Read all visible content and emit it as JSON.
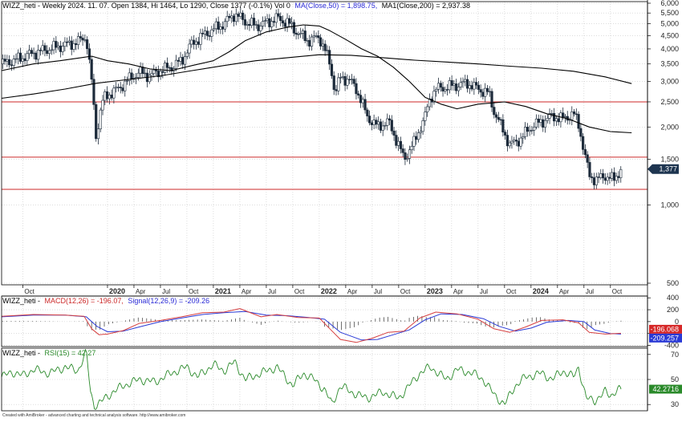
{
  "chart_data": [
    {
      "type": "candlestick",
      "title": "WIZZ_heti - Weekly 2024. 11. 07. Open 1384, Hi 1464, Lo 1290, Close 1377 (-0.1%) Vol 0",
      "ma50_label": "MA(Close,50) = 1,898.75,",
      "ma200_label": "MA1(Close,200) = 2,937.38",
      "price_axis": {
        "ylim": [
          500,
          6000
        ],
        "ticks": [
          {
            "value": 6000,
            "label": "6,000"
          },
          {
            "value": 5500,
            "label": "5,500"
          },
          {
            "value": 5000,
            "label": "5,000"
          },
          {
            "value": 4500,
            "label": "4,500"
          },
          {
            "value": 4000,
            "label": "4,000"
          },
          {
            "value": 3500,
            "label": "3,500"
          },
          {
            "value": 3000,
            "label": "3,000"
          },
          {
            "value": 2500,
            "label": "2,500"
          },
          {
            "value": 2000,
            "label": "2,000"
          },
          {
            "value": 1500,
            "label": "1,500"
          },
          {
            "value": 1000,
            "label": "1,000"
          },
          {
            "value": 500,
            "label": "500"
          }
        ],
        "last_price": 1377,
        "last_label": "1,377"
      },
      "horizontal_lines": [
        2500,
        1530,
        1150
      ],
      "x_axis": [
        {
          "t": 0.2,
          "label": "Oct",
          "year": false
        },
        {
          "t": 1.0,
          "label": "2020",
          "year": true
        },
        {
          "t": 1.25,
          "label": "Apr",
          "year": false
        },
        {
          "t": 1.5,
          "label": "Jul",
          "year": false
        },
        {
          "t": 1.75,
          "label": "Oct",
          "year": false
        },
        {
          "t": 2.0,
          "label": "2021",
          "year": true
        },
        {
          "t": 2.25,
          "label": "Apr",
          "year": false
        },
        {
          "t": 2.5,
          "label": "Jul",
          "year": false
        },
        {
          "t": 2.75,
          "label": "Oct",
          "year": false
        },
        {
          "t": 3.0,
          "label": "2022",
          "year": true
        },
        {
          "t": 3.25,
          "label": "Apr",
          "year": false
        },
        {
          "t": 3.5,
          "label": "Jul",
          "year": false
        },
        {
          "t": 3.75,
          "label": "Oct",
          "year": false
        },
        {
          "t": 4.0,
          "label": "2023",
          "year": true
        },
        {
          "t": 4.25,
          "label": "Apr",
          "year": false
        },
        {
          "t": 4.5,
          "label": "Jul",
          "year": false
        },
        {
          "t": 4.75,
          "label": "Oct",
          "year": false
        },
        {
          "t": 5.0,
          "label": "2024",
          "year": true
        },
        {
          "t": 5.25,
          "label": "Apr",
          "year": false
        },
        {
          "t": 5.5,
          "label": "Jul",
          "year": false
        },
        {
          "t": 5.75,
          "label": "Oct",
          "year": false
        }
      ],
      "price_path": [
        [
          0.0,
          3500
        ],
        [
          0.15,
          3650
        ],
        [
          0.3,
          3850
        ],
        [
          0.45,
          4000
        ],
        [
          0.6,
          4150
        ],
        [
          0.72,
          4250
        ],
        [
          0.8,
          4480
        ],
        [
          0.82,
          3700
        ],
        [
          0.86,
          2800
        ],
        [
          0.88,
          2000
        ],
        [
          0.9,
          1800
        ],
        [
          0.93,
          2300
        ],
        [
          0.97,
          2600
        ],
        [
          1.03,
          2700
        ],
        [
          1.1,
          2800
        ],
        [
          1.2,
          3050
        ],
        [
          1.3,
          3250
        ],
        [
          1.4,
          3150
        ],
        [
          1.5,
          3300
        ],
        [
          1.6,
          3400
        ],
        [
          1.7,
          3600
        ],
        [
          1.8,
          4200
        ],
        [
          1.9,
          4500
        ],
        [
          2.0,
          4750
        ],
        [
          2.1,
          5000
        ],
        [
          2.2,
          5450
        ],
        [
          2.3,
          5100
        ],
        [
          2.4,
          4900
        ],
        [
          2.5,
          5050
        ],
        [
          2.6,
          5250
        ],
        [
          2.7,
          5050
        ],
        [
          2.8,
          4600
        ],
        [
          2.9,
          4300
        ],
        [
          3.0,
          4450
        ],
        [
          3.06,
          3900
        ],
        [
          3.1,
          3500
        ],
        [
          3.15,
          2700
        ],
        [
          3.2,
          3100
        ],
        [
          3.28,
          3050
        ],
        [
          3.35,
          2800
        ],
        [
          3.45,
          2200
        ],
        [
          3.55,
          2000
        ],
        [
          3.65,
          2100
        ],
        [
          3.75,
          1700
        ],
        [
          3.8,
          1500
        ],
        [
          3.9,
          1750
        ],
        [
          4.0,
          2200
        ],
        [
          4.05,
          2600
        ],
        [
          4.1,
          2800
        ],
        [
          4.2,
          2850
        ],
        [
          4.3,
          2900
        ],
        [
          4.4,
          2950
        ],
        [
          4.5,
          2800
        ],
        [
          4.6,
          2700
        ],
        [
          4.65,
          2300
        ],
        [
          4.72,
          2000
        ],
        [
          4.8,
          1700
        ],
        [
          4.9,
          1800
        ],
        [
          5.0,
          2000
        ],
        [
          5.1,
          2100
        ],
        [
          5.2,
          2200
        ],
        [
          5.3,
          2150
        ],
        [
          5.4,
          2250
        ],
        [
          5.45,
          2050
        ],
        [
          5.5,
          1600
        ],
        [
          5.55,
          1300
        ],
        [
          5.62,
          1250
        ],
        [
          5.7,
          1300
        ],
        [
          5.78,
          1250
        ],
        [
          5.85,
          1377
        ]
      ],
      "ma50_path": [
        [
          0.0,
          3300
        ],
        [
          0.3,
          3500
        ],
        [
          0.55,
          3600
        ],
        [
          0.75,
          3700
        ],
        [
          0.85,
          3750
        ],
        [
          1.0,
          3600
        ],
        [
          1.2,
          3500
        ],
        [
          1.4,
          3350
        ],
        [
          1.6,
          3300
        ],
        [
          1.8,
          3450
        ],
        [
          2.0,
          3600
        ],
        [
          2.15,
          3900
        ],
        [
          2.3,
          4300
        ],
        [
          2.5,
          4650
        ],
        [
          2.7,
          4850
        ],
        [
          2.85,
          4950
        ],
        [
          3.0,
          4900
        ],
        [
          3.1,
          4700
        ],
        [
          3.25,
          4350
        ],
        [
          3.4,
          4000
        ],
        [
          3.55,
          3750
        ],
        [
          3.7,
          3400
        ],
        [
          3.85,
          3000
        ],
        [
          4.0,
          2600
        ],
        [
          4.15,
          2450
        ],
        [
          4.3,
          2350
        ],
        [
          4.5,
          2450
        ],
        [
          4.75,
          2500
        ],
        [
          4.95,
          2400
        ],
        [
          5.15,
          2250
        ],
        [
          5.35,
          2150
        ],
        [
          5.55,
          2000
        ],
        [
          5.75,
          1920
        ],
        [
          5.95,
          1900
        ]
      ],
      "ma200_path": [
        [
          0.0,
          2580
        ],
        [
          0.3,
          2680
        ],
        [
          0.6,
          2800
        ],
        [
          0.9,
          2950
        ],
        [
          1.2,
          3050
        ],
        [
          1.5,
          3150
        ],
        [
          1.8,
          3300
        ],
        [
          2.1,
          3450
        ],
        [
          2.4,
          3600
        ],
        [
          2.7,
          3700
        ],
        [
          3.0,
          3800
        ],
        [
          3.3,
          3780
        ],
        [
          3.6,
          3700
        ],
        [
          3.9,
          3620
        ],
        [
          4.2,
          3560
        ],
        [
          4.5,
          3500
        ],
        [
          4.8,
          3430
        ],
        [
          5.1,
          3370
        ],
        [
          5.4,
          3280
        ],
        [
          5.7,
          3120
        ],
        [
          5.95,
          2940
        ]
      ]
    },
    {
      "type": "line",
      "title": "WIZZ_heti -",
      "macd_label": "MACD(12,26) = -196.07,",
      "signal_label": "Signal(12,26,9) = -209.26",
      "ylim": [
        -420,
        430
      ],
      "ticks": [
        {
          "value": 400,
          "label": "400"
        },
        {
          "value": 200,
          "label": "200"
        },
        {
          "value": 0,
          "label": "0"
        },
        {
          "value": -200,
          "label": "-200"
        },
        {
          "value": -400,
          "label": "-400"
        }
      ],
      "macd_last_label": "-196.068",
      "signal_last_label": "-209.257",
      "macd_path": [
        [
          0.0,
          90
        ],
        [
          0.3,
          120
        ],
        [
          0.6,
          110
        ],
        [
          0.78,
          90
        ],
        [
          0.85,
          -120
        ],
        [
          0.92,
          -220
        ],
        [
          1.0,
          -210
        ],
        [
          1.15,
          -150
        ],
        [
          1.3,
          -30
        ],
        [
          1.5,
          20
        ],
        [
          1.7,
          80
        ],
        [
          1.9,
          150
        ],
        [
          2.1,
          160
        ],
        [
          2.25,
          220
        ],
        [
          2.45,
          80
        ],
        [
          2.6,
          120
        ],
        [
          2.8,
          70
        ],
        [
          3.0,
          60
        ],
        [
          3.1,
          -120
        ],
        [
          3.2,
          -300
        ],
        [
          3.35,
          -350
        ],
        [
          3.5,
          -280
        ],
        [
          3.65,
          -180
        ],
        [
          3.8,
          -160
        ],
        [
          3.95,
          60
        ],
        [
          4.1,
          160
        ],
        [
          4.3,
          130
        ],
        [
          4.5,
          40
        ],
        [
          4.65,
          -120
        ],
        [
          4.8,
          -180
        ],
        [
          4.95,
          -90
        ],
        [
          5.1,
          20
        ],
        [
          5.3,
          30
        ],
        [
          5.45,
          -20
        ],
        [
          5.55,
          -180
        ],
        [
          5.7,
          -210
        ],
        [
          5.85,
          -196
        ]
      ],
      "signal_path": [
        [
          0.0,
          80
        ],
        [
          0.3,
          110
        ],
        [
          0.6,
          110
        ],
        [
          0.8,
          80
        ],
        [
          0.9,
          -80
        ],
        [
          1.0,
          -170
        ],
        [
          1.15,
          -160
        ],
        [
          1.3,
          -90
        ],
        [
          1.5,
          0
        ],
        [
          1.7,
          60
        ],
        [
          1.9,
          120
        ],
        [
          2.1,
          150
        ],
        [
          2.3,
          170
        ],
        [
          2.5,
          110
        ],
        [
          2.7,
          100
        ],
        [
          2.9,
          70
        ],
        [
          3.05,
          40
        ],
        [
          3.2,
          -180
        ],
        [
          3.4,
          -310
        ],
        [
          3.55,
          -300
        ],
        [
          3.7,
          -220
        ],
        [
          3.85,
          -140
        ],
        [
          4.0,
          30
        ],
        [
          4.15,
          130
        ],
        [
          4.35,
          120
        ],
        [
          4.55,
          50
        ],
        [
          4.7,
          -80
        ],
        [
          4.85,
          -160
        ],
        [
          5.0,
          -110
        ],
        [
          5.15,
          -10
        ],
        [
          5.35,
          20
        ],
        [
          5.5,
          0
        ],
        [
          5.6,
          -140
        ],
        [
          5.75,
          -200
        ],
        [
          5.85,
          -209
        ]
      ],
      "histogram_step": 0.04
    },
    {
      "type": "line",
      "title": "WIZZ_heti -",
      "rsi_label": "RSI(15) = 42.27",
      "ylim": [
        25,
        75
      ],
      "ticks": [
        {
          "value": 70,
          "label": "70"
        },
        {
          "value": 50,
          "label": "50"
        },
        {
          "value": 30,
          "label": "30"
        }
      ],
      "rsi_last_label": "42.2716",
      "rsi_path": [
        [
          0.0,
          52
        ],
        [
          0.1,
          56
        ],
        [
          0.2,
          53
        ],
        [
          0.3,
          58
        ],
        [
          0.45,
          55
        ],
        [
          0.6,
          60
        ],
        [
          0.72,
          57
        ],
        [
          0.8,
          72
        ],
        [
          0.84,
          40
        ],
        [
          0.88,
          28
        ],
        [
          0.95,
          33
        ],
        [
          1.05,
          40
        ],
        [
          1.15,
          45
        ],
        [
          1.3,
          50
        ],
        [
          1.45,
          48
        ],
        [
          1.6,
          55
        ],
        [
          1.75,
          60
        ],
        [
          1.85,
          52
        ],
        [
          2.0,
          62
        ],
        [
          2.1,
          57
        ],
        [
          2.2,
          64
        ],
        [
          2.3,
          50
        ],
        [
          2.45,
          55
        ],
        [
          2.6,
          60
        ],
        [
          2.75,
          45
        ],
        [
          2.85,
          55
        ],
        [
          2.95,
          50
        ],
        [
          3.05,
          42
        ],
        [
          3.12,
          30
        ],
        [
          3.2,
          45
        ],
        [
          3.3,
          40
        ],
        [
          3.45,
          35
        ],
        [
          3.6,
          40
        ],
        [
          3.75,
          35
        ],
        [
          3.85,
          45
        ],
        [
          3.95,
          55
        ],
        [
          4.05,
          60
        ],
        [
          4.2,
          50
        ],
        [
          4.3,
          58
        ],
        [
          4.45,
          55
        ],
        [
          4.55,
          50
        ],
        [
          4.65,
          38
        ],
        [
          4.75,
          30
        ],
        [
          4.85,
          45
        ],
        [
          4.95,
          52
        ],
        [
          5.1,
          55
        ],
        [
          5.2,
          50
        ],
        [
          5.3,
          57
        ],
        [
          5.4,
          52
        ],
        [
          5.45,
          60
        ],
        [
          5.52,
          35
        ],
        [
          5.6,
          33
        ],
        [
          5.7,
          40
        ],
        [
          5.75,
          37
        ],
        [
          5.8,
          41
        ],
        [
          5.85,
          42.27
        ]
      ]
    }
  ],
  "footer": "Created with AmiBroker - advanced charting and technical analysis software. http://www.amibroker.com",
  "colors": {
    "candle": "#1c2a3a",
    "ma50": "#000000",
    "ma200": "#000000",
    "hline": "#cc2a2a",
    "macd": "#d64040",
    "signal": "#2a3ad6",
    "rsi": "#2a8a2a",
    "grid": "#c8c8c8",
    "axis_text": "#222222",
    "last_price_bg": "#1e3550",
    "macd_last_bg": "#d62828",
    "signal_last_bg": "#2a3ad6",
    "rsi_last_bg": "#2a8a2a",
    "title_black": "#000000",
    "title_blue": "#2a2ad6",
    "title_red": "#cc2a2a",
    "title_green": "#2a8a2a"
  }
}
